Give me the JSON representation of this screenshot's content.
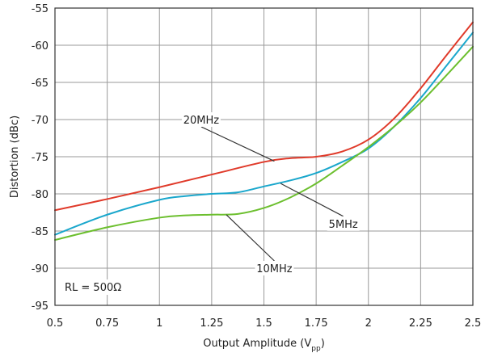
{
  "chart_data": {
    "type": "line",
    "xlabel": "Output Amplitude (V",
    "xlabel_subscript": "pp",
    "xlabel_suffix": ")",
    "ylabel": "Distortion (dBc)",
    "xlim": [
      0.5,
      2.5
    ],
    "ylim": [
      -95,
      -55
    ],
    "x_ticks": [
      0.5,
      0.75,
      1,
      1.25,
      1.5,
      1.75,
      2,
      2.25,
      2.5
    ],
    "x_tick_labels": [
      "0.5",
      "0.75",
      "1",
      "1.25",
      "1.5",
      "1.75",
      "2",
      "2.25",
      "2.5"
    ],
    "y_ticks": [
      -55,
      -60,
      -65,
      -70,
      -75,
      -80,
      -85,
      -90,
      -95
    ],
    "y_tick_labels": [
      "-55",
      "-60",
      "-65",
      "-70",
      "-75",
      "-80",
      "-85",
      "-90",
      "-95"
    ],
    "grid": true,
    "annotation": "RL = 500Ω",
    "series": [
      {
        "name": "20MHz",
        "color": "#e03a2a",
        "x": [
          0.5,
          0.75,
          1.0,
          1.25,
          1.5,
          1.625,
          1.75,
          1.875,
          2.0,
          2.125,
          2.25,
          2.375,
          2.5
        ],
        "y": [
          -82.2,
          -80.7,
          -79.1,
          -77.4,
          -75.7,
          -75.2,
          -75.0,
          -74.3,
          -72.7,
          -69.8,
          -65.8,
          -61.3,
          -56.9
        ]
      },
      {
        "name": "5MHz",
        "color": "#1aa7cc",
        "x": [
          0.5,
          0.75,
          1.0,
          1.125,
          1.25,
          1.375,
          1.5,
          1.625,
          1.75,
          1.875,
          2.0,
          2.125,
          2.25,
          2.375,
          2.5
        ],
        "y": [
          -85.5,
          -82.8,
          -80.8,
          -80.3,
          -80.0,
          -79.8,
          -79.0,
          -78.2,
          -77.2,
          -75.7,
          -73.9,
          -70.9,
          -67.1,
          -62.7,
          -58.3
        ]
      },
      {
        "name": "10MHz",
        "color": "#6cbf2e",
        "x": [
          0.5,
          0.75,
          1.0,
          1.125,
          1.25,
          1.375,
          1.5,
          1.625,
          1.75,
          1.875,
          2.0,
          2.125,
          2.25,
          2.375,
          2.5
        ],
        "y": [
          -86.2,
          -84.5,
          -83.2,
          -82.9,
          -82.8,
          -82.7,
          -81.9,
          -80.5,
          -78.6,
          -76.2,
          -73.7,
          -70.9,
          -67.7,
          -64.0,
          -60.2
        ]
      }
    ],
    "callouts": [
      {
        "label": "20MHz",
        "target_series": "20MHz",
        "label_x": 1.2,
        "label_y": -70,
        "point_x": 1.55,
        "point_y": -75.6
      },
      {
        "label": "5MHz",
        "target_series": "5MHz",
        "label_x": 1.88,
        "label_y": -84,
        "point_x": 1.58,
        "point_y": -78.6
      },
      {
        "label": "10MHz",
        "target_series": "10MHz",
        "label_x": 1.55,
        "label_y": -90,
        "point_x": 1.32,
        "point_y": -82.8
      }
    ]
  }
}
